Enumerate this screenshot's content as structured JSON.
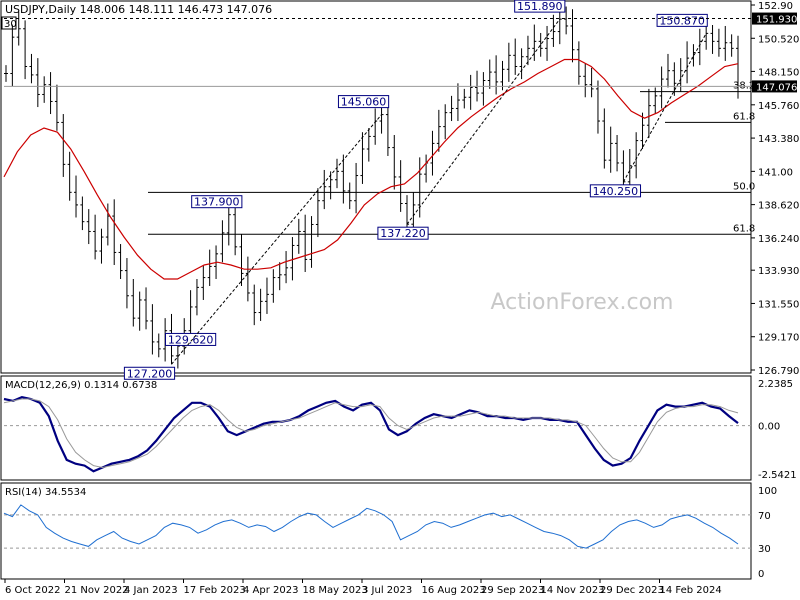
{
  "header": {
    "symbol_info": "USDJPY,Daily  148.006 148.111 146.473 147.076",
    "corner_tag": "30"
  },
  "watermark": "ActionForex.com",
  "chart_data": [
    {
      "type": "line",
      "name": "price",
      "x_ticks": [
        "6 Oct 2022",
        "21 Nov 2022",
        "4 Jan 2023",
        "17 Feb 2023",
        "4 Apr 2023",
        "18 May 2023",
        "3 Jul 2023",
        "16 Aug 2023",
        "29 Sep 2023",
        "14 Nov 2023",
        "29 Dec 2023",
        "14 Feb 2024"
      ],
      "y_ticks": [
        "152.90",
        "150.520",
        "148.150",
        "147.076",
        "145.760",
        "143.380",
        "141.00",
        "138.620",
        "136.240",
        "133.930",
        "131.550",
        "129.170",
        "126.790"
      ],
      "ylim": [
        126.79,
        152.9
      ],
      "current_price": "147.076",
      "high_tag": "151.930",
      "series": [
        {
          "key": "close",
          "color": "#000000",
          "values": [
            148.0,
            150.6,
            151.2,
            148.5,
            147.9,
            146.5,
            147.2,
            146.0,
            144.5,
            141.5,
            139.5,
            138.6,
            137.4,
            136.7,
            135.3,
            136.3,
            137.8,
            135.2,
            133.9,
            132.1,
            130.5,
            131.8,
            130.3,
            128.8,
            128.3,
            129.6,
            127.8,
            128.5,
            129.6,
            131.3,
            132.7,
            133.4,
            134.2,
            135.1,
            136.6,
            137.9,
            135.6,
            133.7,
            132.3,
            130.9,
            131.7,
            132.2,
            133.4,
            133.6,
            134.1,
            135.7,
            136.7,
            134.7,
            137.2,
            138.9,
            139.9,
            140.4,
            141.0,
            139.6,
            138.9,
            140.7,
            142.6,
            143.5,
            144.6,
            145.06,
            142.7,
            140.6,
            138.7,
            137.22,
            138.6,
            140.8,
            141.6,
            143.0,
            144.2,
            145.2,
            145.5,
            146.1,
            146.3,
            147.0,
            146.6,
            147.5,
            148.1,
            147.4,
            148.3,
            149.3,
            148.5,
            149.2,
            149.8,
            150.3,
            149.8,
            150.5,
            151.0,
            151.89,
            151.4,
            149.7,
            147.8,
            147.2,
            146.9,
            144.6,
            141.8,
            143.0,
            141.6,
            140.25,
            141.4,
            143.2,
            144.3,
            145.7,
            146.4,
            147.6,
            148.2,
            147.3,
            148.2,
            149.1,
            149.5,
            150.3,
            150.87,
            150.3,
            149.8,
            150.2,
            149.8,
            147.1
          ]
        },
        {
          "key": "ma",
          "color": "#cc0000",
          "values": [
            140.6,
            142.4,
            143.6,
            144.1,
            143.8,
            142.6,
            141.0,
            139.3,
            137.7,
            136.3,
            135.0,
            134.0,
            133.3,
            133.3,
            133.8,
            134.3,
            134.5,
            134.3,
            134.0,
            134.0,
            134.1,
            134.5,
            134.8,
            135.1,
            135.4,
            136.1,
            137.3,
            138.6,
            139.4,
            139.9,
            140.1,
            140.9,
            142.0,
            143.1,
            144.1,
            144.9,
            145.6,
            146.3,
            146.9,
            147.4,
            148.0,
            148.5,
            149.0,
            149.0,
            148.5,
            147.6,
            146.4,
            145.3,
            144.8,
            145.2,
            145.9,
            146.5,
            147.1,
            147.8,
            148.5,
            148.7
          ]
        }
      ],
      "levels": [
        {
          "label": "38.2",
          "value": 146.7
        },
        {
          "label": "61.8",
          "value": 144.5
        },
        {
          "label": "50.0",
          "value": 139.5
        },
        {
          "label": "61.8",
          "value": 136.5
        }
      ],
      "annotations": [
        "127.200",
        "129.620",
        "137.900",
        "145.060",
        "137.220",
        "151.890",
        "140.250",
        "150.870"
      ]
    },
    {
      "type": "line",
      "name": "macd",
      "title": "MACD(12,26,9) 0.1314 0.6738",
      "y_ticks": [
        "2.2385",
        "0.00",
        "-2.5421"
      ],
      "ylim": [
        -2.5421,
        2.2385
      ],
      "series": [
        {
          "key": "macd",
          "color": "#000080",
          "values": [
            1.4,
            1.3,
            1.5,
            1.4,
            1.2,
            0.5,
            -0.8,
            -1.8,
            -2.0,
            -2.1,
            -2.4,
            -2.2,
            -2.0,
            -1.9,
            -1.8,
            -1.6,
            -1.3,
            -0.8,
            -0.2,
            0.4,
            0.8,
            1.2,
            1.2,
            1.0,
            0.4,
            -0.3,
            -0.5,
            -0.3,
            -0.1,
            0.1,
            0.2,
            0.2,
            0.3,
            0.5,
            0.8,
            1.0,
            1.2,
            1.3,
            1.0,
            0.8,
            1.1,
            1.2,
            0.8,
            -0.2,
            -0.5,
            -0.3,
            0.1,
            0.4,
            0.6,
            0.5,
            0.4,
            0.6,
            0.8,
            0.7,
            0.5,
            0.5,
            0.4,
            0.4,
            0.3,
            0.4,
            0.4,
            0.3,
            0.3,
            0.2,
            0.2,
            -0.5,
            -1.2,
            -1.8,
            -2.1,
            -2.0,
            -1.7,
            -0.8,
            0.0,
            0.8,
            1.1,
            1.0,
            1.0,
            1.1,
            1.2,
            1.0,
            0.9,
            0.5,
            0.13
          ]
        },
        {
          "key": "signal",
          "color": "#999999",
          "values": [
            1.2,
            1.3,
            1.4,
            1.4,
            1.3,
            1.0,
            0.3,
            -0.7,
            -1.4,
            -1.8,
            -2.1,
            -2.2,
            -2.1,
            -2.0,
            -1.9,
            -1.7,
            -1.5,
            -1.1,
            -0.6,
            -0.1,
            0.4,
            0.8,
            1.0,
            1.1,
            0.8,
            0.3,
            -0.1,
            -0.3,
            -0.2,
            0.0,
            0.1,
            0.2,
            0.3,
            0.4,
            0.6,
            0.8,
            1.0,
            1.2,
            1.1,
            1.0,
            1.0,
            1.1,
            1.0,
            0.4,
            0.0,
            -0.2,
            0.0,
            0.2,
            0.4,
            0.5,
            0.5,
            0.5,
            0.6,
            0.7,
            0.6,
            0.5,
            0.5,
            0.4,
            0.4,
            0.4,
            0.4,
            0.4,
            0.3,
            0.3,
            0.2,
            0.0,
            -0.6,
            -1.2,
            -1.7,
            -1.9,
            -1.9,
            -1.4,
            -0.6,
            0.2,
            0.7,
            0.9,
            1.0,
            1.0,
            1.1,
            1.1,
            1.0,
            0.8,
            0.67
          ]
        }
      ]
    },
    {
      "type": "line",
      "name": "rsi",
      "title": "RSI(14) 34.5534",
      "y_ticks": [
        "100",
        "70",
        "30",
        "0"
      ],
      "ylim": [
        0,
        100
      ],
      "series": [
        {
          "key": "rsi",
          "color": "#1f6fd1",
          "values": [
            72,
            68,
            82,
            75,
            70,
            55,
            48,
            42,
            38,
            35,
            32,
            40,
            45,
            50,
            42,
            38,
            35,
            40,
            45,
            55,
            60,
            58,
            55,
            48,
            52,
            58,
            62,
            64,
            60,
            55,
            58,
            56,
            50,
            55,
            62,
            68,
            72,
            70,
            62,
            55,
            60,
            65,
            70,
            78,
            75,
            70,
            62,
            40,
            45,
            50,
            58,
            62,
            60,
            55,
            58,
            62,
            66,
            70,
            72,
            68,
            70,
            65,
            60,
            55,
            50,
            48,
            45,
            40,
            32,
            30,
            35,
            40,
            50,
            58,
            62,
            64,
            60,
            55,
            58,
            65,
            68,
            70,
            66,
            60,
            55,
            48,
            42,
            35
          ]
        }
      ]
    }
  ]
}
